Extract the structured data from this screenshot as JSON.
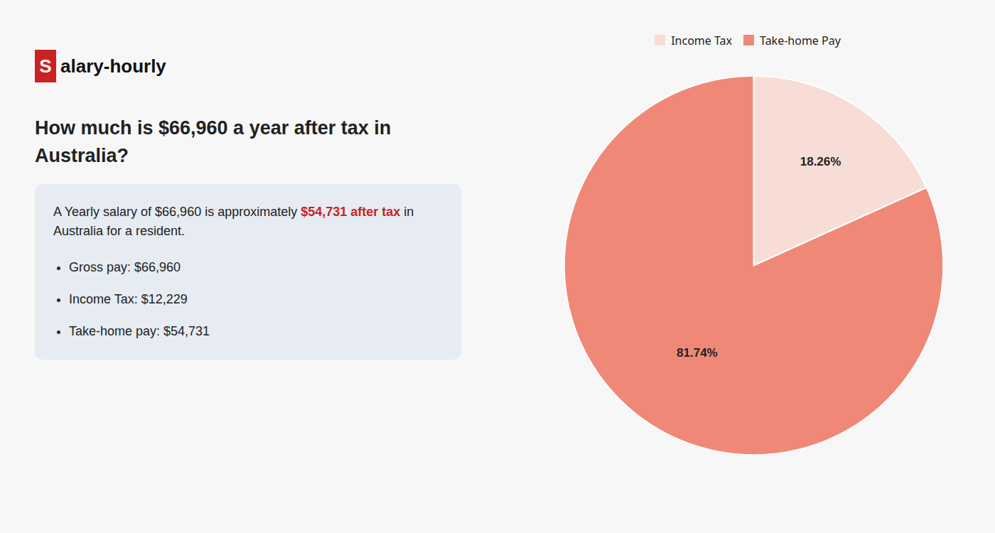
{
  "chart_data": {
    "type": "pie",
    "title": "How much is $66,960 a year after tax in Australia?",
    "annotations": [
      "S",
      "alary-hourly",
      "A Yearly salary of $66,960 is approximately ",
      "$54,731 after tax",
      " in",
      "Australia for a resident.",
      "Gross pay: $66,960",
      "Income Tax: $12,229",
      "Take-home pay: $54,731"
    ],
    "categories": [
      "Income Tax",
      "Take-home Pay"
    ],
    "values": [
      18.26,
      81.74
    ],
    "value_labels": [
      "18.26%",
      "81.74%"
    ],
    "colors": [
      "#f7ddd5",
      "#f08878"
    ],
    "data_labels": true,
    "legend": "top"
  }
}
